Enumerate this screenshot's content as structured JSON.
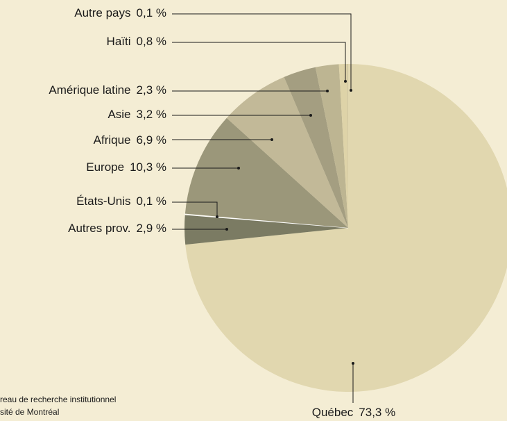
{
  "chart_data": {
    "type": "pie",
    "categories": [
      "Québec",
      "Autres prov.",
      "États-Unis",
      "Europe",
      "Afrique",
      "Asie",
      "Amérique latine",
      "Haïti",
      "Autre pays"
    ],
    "values": [
      73.3,
      2.9,
      0.1,
      10.3,
      6.9,
      3.2,
      2.3,
      0.8,
      0.1
    ],
    "value_labels": [
      "73,3 %",
      "2,9 %",
      "0,1 %",
      "10,3 %",
      "6,9 %",
      "3,2 %",
      "2,3 %",
      "0,8 %",
      "0,1 %"
    ],
    "colors": [
      "#e1d7af",
      "#7b7b63",
      "#f4eed6",
      "#9b977a",
      "#c2b998",
      "#a49e81",
      "#bdb592",
      "#ded3a8",
      "#cfc59f"
    ],
    "source": [
      "reau de recherche institutionnel",
      "sité de Montréal"
    ]
  }
}
